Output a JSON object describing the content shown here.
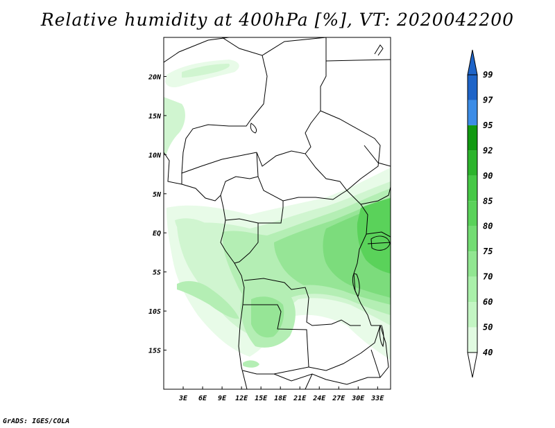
{
  "title": "Relative humidity at 400hPa [%], VT: 2020042200",
  "credit": "GrADS: IGES/COLA",
  "map": {
    "lon_range": [
      0,
      35
    ],
    "lat_range": [
      -20,
      25
    ],
    "lat_ticks": [
      {
        "value": 20,
        "label": "20N"
      },
      {
        "value": 15,
        "label": "15N"
      },
      {
        "value": 10,
        "label": "10N"
      },
      {
        "value": 5,
        "label": "5N"
      },
      {
        "value": 0,
        "label": "EQ"
      },
      {
        "value": -5,
        "label": "5S"
      },
      {
        "value": -10,
        "label": "10S"
      },
      {
        "value": -15,
        "label": "15S"
      }
    ],
    "lon_ticks": [
      {
        "value": 3,
        "label": "3E"
      },
      {
        "value": 6,
        "label": "6E"
      },
      {
        "value": 9,
        "label": "9E"
      },
      {
        "value": 12,
        "label": "12E"
      },
      {
        "value": 15,
        "label": "15E"
      },
      {
        "value": 18,
        "label": "18E"
      },
      {
        "value": 21,
        "label": "21E"
      },
      {
        "value": 24,
        "label": "24E"
      },
      {
        "value": 27,
        "label": "27E"
      },
      {
        "value": 30,
        "label": "30E"
      },
      {
        "value": 33,
        "label": "33E"
      }
    ]
  },
  "colorbar": {
    "levels": [
      "99",
      "97",
      "95",
      "92",
      "90",
      "85",
      "80",
      "75",
      "70",
      "60",
      "50",
      "40"
    ],
    "colors": [
      "#1e64c8",
      "#1e64c8",
      "#3c8ce6",
      "#119911",
      "#2cb42c",
      "#46c846",
      "#5ad25a",
      "#73dc73",
      "#91e691",
      "#aaf0aa",
      "#c3f5c3",
      "#e1fae1",
      "#ffffff"
    ]
  },
  "humidity_colors": {
    "h40": "#e8fbe8",
    "h50": "#d0f5d0",
    "h60": "#b4eeb4",
    "h70": "#96e596",
    "h75": "#7cdc7c",
    "h80": "#5ad25a"
  }
}
